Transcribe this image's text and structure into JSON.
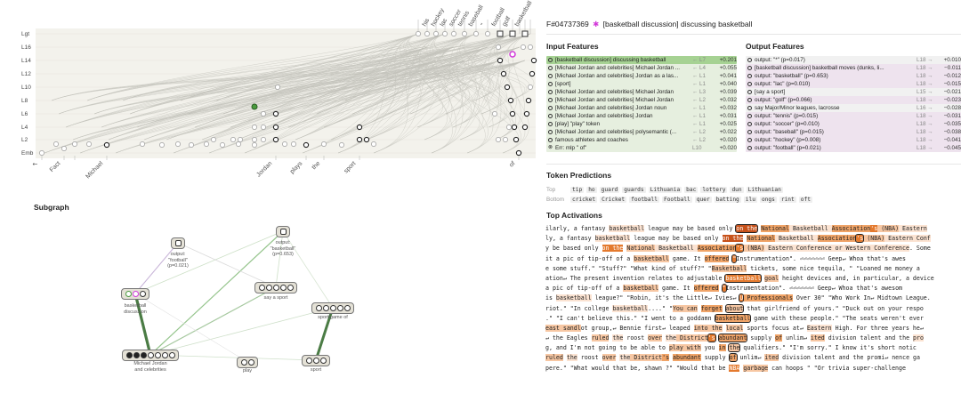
{
  "graph": {
    "layer_labels": [
      "Lgt",
      "L16",
      "L14",
      "L12",
      "L10",
      "L8",
      "L6",
      "L4",
      "L2",
      "Emb"
    ],
    "top_tokens": [
      "his",
      "hockey",
      "lac",
      "soccer",
      "tennis",
      "baseball",
      "\"",
      "football",
      "golf",
      "basketball"
    ],
    "bottom_tokens": [
      "↖",
      "Fact",
      "",
      "Michael",
      "Jordan",
      "plays",
      "the",
      "sport",
      "of"
    ]
  },
  "subgraph": {
    "title": "Subgraph",
    "nodes": [
      {
        "id": "football",
        "label": "output:\n\"football\"\n(p=0.021)"
      },
      {
        "id": "basketball-out",
        "label": "output:\n\"basketball\"\n(p=0.653)"
      },
      {
        "id": "basketball-disc",
        "label": "basketball\ndiscussion"
      },
      {
        "id": "say-sport",
        "label": "say a sport"
      },
      {
        "id": "sport-game",
        "label": "sport/game of"
      },
      {
        "id": "mj",
        "label": "Michael Jordan\nand celebrities"
      },
      {
        "id": "play",
        "label": "play"
      },
      {
        "id": "sport",
        "label": "sport"
      }
    ]
  },
  "detail": {
    "feature_id": "F#04737369",
    "star": "✱",
    "title": "[basketball discussion] discussing basketball",
    "input_heading": "Input Features",
    "output_heading": "Output Features",
    "input_features": [
      {
        "name": "[basketball discussion] discussing basketball",
        "layer": "← L7",
        "value": "+0.201",
        "selected": true
      },
      {
        "name": "[Michael Jordan and celebrities] Michael Jordan ...",
        "layer": "← L4",
        "value": "+0.055"
      },
      {
        "name": "[Michael Jordan and celebrities] Jordan as a las...",
        "layer": "← L1",
        "value": "+0.041"
      },
      {
        "name": "[sport]",
        "layer": "← L1",
        "value": "+0.040"
      },
      {
        "name": "[Michael Jordan and celebrities] Michael Jordan",
        "layer": "← L3",
        "value": "+0.039"
      },
      {
        "name": "[Michael Jordan and celebrities] Michael Jordan",
        "layer": "← L2",
        "value": "+0.032"
      },
      {
        "name": "[Michael Jordan and celebrities] Jordan noun",
        "layer": "← L1",
        "value": "+0.032"
      },
      {
        "name": "[Michael Jordan and celebrities] Jordan",
        "layer": "← L1",
        "value": "+0.031"
      },
      {
        "name": "[play] \"play\" token",
        "layer": "← L1",
        "value": "+0.025"
      },
      {
        "name": "[Michael Jordan and celebrities] polysemantic (...",
        "layer": "← L2",
        "value": "+0.022"
      },
      {
        "name": "famous athletes and coaches",
        "layer": "← L2",
        "value": "+0.020"
      },
      {
        "name": "Err: mlp \" of\"",
        "layer": "L10",
        "value": "+0.020"
      }
    ],
    "output_features": [
      {
        "name": "output: \"*\" (p=0.017)",
        "layer": "L18 →",
        "value": "+0.010"
      },
      {
        "name": "[basketball discussion] basketball moves (dunks, li...",
        "layer": "L18 →",
        "value": "−0.011"
      },
      {
        "name": "output: \"basketball\" (p=0.653)",
        "layer": "L18 →",
        "value": "−0.012"
      },
      {
        "name": "output: \"lac\" (p=0.010)",
        "layer": "L18 →",
        "value": "−0.015"
      },
      {
        "name": "[say a sport]",
        "layer": "L15 →",
        "value": "−0.021"
      },
      {
        "name": "output: \"golf\" (p=0.066)",
        "layer": "L18 →",
        "value": "−0.023"
      },
      {
        "name": "say Major/Minor leagues, lacrosse",
        "layer": "L16 →",
        "value": "−0.028"
      },
      {
        "name": "output: \"tennis\" (p=0.015)",
        "layer": "L18 →",
        "value": "−0.031"
      },
      {
        "name": "output: \"soccer\" (p=0.010)",
        "layer": "L18 →",
        "value": "−0.035"
      },
      {
        "name": "output: \"baseball\" (p=0.015)",
        "layer": "L18 →",
        "value": "−0.038"
      },
      {
        "name": "output: \"hockey\" (p=0.008)",
        "layer": "L18 →",
        "value": "−0.041"
      },
      {
        "name": "output: \"football\" (p=0.021)",
        "layer": "L18 →",
        "value": "−0.045"
      }
    ],
    "token_predictions_heading": "Token Predictions",
    "token_predictions": {
      "top_label": "Top",
      "top": [
        "tip",
        "ho",
        "guard",
        "guards",
        "Lithuania",
        "bac",
        "lottery",
        "dun",
        "Lithuanian"
      ],
      "bottom_label": "Bottom",
      "bottom": [
        "cricket",
        "Cricket",
        "football",
        "Football",
        "quer",
        "batting",
        "ilu",
        "ongs",
        "rint",
        "oft"
      ]
    },
    "top_activations_heading": "Top Activations",
    "activations": [
      [
        [
          "ilarly, a fantasy ",
          0
        ],
        [
          "basketball",
          1
        ],
        [
          " league may be based only ",
          0
        ],
        [
          "on the",
          5,
          1
        ],
        [
          " ",
          0
        ],
        [
          "National",
          3
        ],
        [
          " Basketball ",
          1
        ],
        [
          "Association",
          3
        ],
        [
          "'s",
          4
        ],
        [
          " (NBA)",
          2
        ],
        [
          " Eastern",
          1
        ]
      ],
      [
        [
          "ly, a fantasy ",
          0
        ],
        [
          "basketball",
          1
        ],
        [
          " league may be based only ",
          0
        ],
        [
          "on the",
          5
        ],
        [
          " ",
          0
        ],
        [
          "National",
          3
        ],
        [
          " Basketball ",
          1
        ],
        [
          "Association",
          3
        ],
        [
          "'s",
          4,
          1
        ],
        [
          " (NBA)",
          2
        ],
        [
          " Eastern Conf",
          1
        ]
      ],
      [
        [
          "y be based only ",
          0
        ],
        [
          "on the",
          4
        ],
        [
          " ",
          0
        ],
        [
          "National",
          2
        ],
        [
          " Basketball ",
          1
        ],
        [
          "Association",
          3
        ],
        [
          "'s",
          4,
          1
        ],
        [
          " (NBA)",
          2
        ],
        [
          " Eastern Conference or Western Conference",
          1
        ],
        [
          ". Some",
          0
        ]
      ],
      [
        [
          "it a pic of tip-off of a ",
          0
        ],
        [
          "basketball",
          2
        ],
        [
          " game. It ",
          0
        ],
        [
          "offered",
          3
        ],
        [
          " ",
          0
        ],
        [
          "\"",
          4,
          1
        ],
        [
          "Instrumentation\". ⏎⏎⏎⏎⏎⏎⏎ Geep↵ Whoa that's awes",
          0
        ]
      ],
      [
        [
          "e some stuff.\" \"Stuff?\" \"What kind of stuff?\" \"",
          0
        ],
        [
          "Basketball",
          2
        ],
        [
          " tickets, some nice tequila, \" \"Loaned me money a",
          0
        ]
      ],
      [
        [
          "ation↵ The present invention relates to adjustable ",
          0
        ],
        [
          "basketball",
          4,
          1
        ],
        [
          " ",
          0
        ],
        [
          "goal",
          2
        ],
        [
          " height devices and, in particular, a device",
          0
        ]
      ],
      [
        [
          "a pic of tip-off of a ",
          0
        ],
        [
          "basketball",
          2
        ],
        [
          " game. It ",
          0
        ],
        [
          "offered",
          3
        ],
        [
          " ",
          0
        ],
        [
          "\"",
          4,
          1
        ],
        [
          "Instrumentation\". ⏎⏎⏎⏎⏎⏎⏎ Geep↵ Whoa that's awesom",
          0
        ]
      ],
      [
        [
          "is ",
          0
        ],
        [
          "basketball",
          1
        ],
        [
          " league?\" \"Robin, it's the Little↵ Ivies↵ ",
          0
        ],
        [
          "U",
          4,
          1
        ],
        [
          " Professionals",
          3
        ],
        [
          " Over 30\" \"Who Work In↵ Midtown League.",
          0
        ]
      ],
      [
        [
          "riot.\" \"In college ",
          0
        ],
        [
          "basketball",
          1
        ],
        [
          "....\" \"",
          0
        ],
        [
          "You can",
          2
        ],
        [
          " ",
          0
        ],
        [
          "forget",
          3
        ],
        [
          " ",
          0
        ],
        [
          "about",
          2,
          1
        ],
        [
          " that girlfriend of yours.\" \"Duck out on your respo",
          0
        ]
      ],
      [
        [
          ".\" \"I can't believe this.\" \"I went to a goddamn ",
          0
        ],
        [
          "basketball",
          3,
          1
        ],
        [
          " game with these people.\" \"The seats weren't ever",
          0
        ]
      ],
      [
        [
          "east sandl",
          2
        ],
        [
          "ot group,↵ Bennie first↵ leaped ",
          0
        ],
        [
          "into the",
          2
        ],
        [
          " ",
          0
        ],
        [
          "local",
          2
        ],
        [
          " sports focus at↵ ",
          0
        ],
        [
          "Eastern",
          1
        ],
        [
          " High. For three years he↵",
          0
        ]
      ],
      [
        [
          "↵ the Eagles ",
          0
        ],
        [
          "ruled",
          2
        ],
        [
          " ",
          0
        ],
        [
          "the",
          1
        ],
        [
          " roost ",
          0
        ],
        [
          "over",
          2
        ],
        [
          " ",
          0
        ],
        [
          "the",
          1
        ],
        [
          " District",
          2
        ],
        [
          "'s",
          4,
          1
        ],
        [
          " ",
          0
        ],
        [
          "abundant",
          3,
          1
        ],
        [
          " supply ",
          0
        ],
        [
          "of",
          3
        ],
        [
          " unlim↵ ",
          0
        ],
        [
          "ited",
          2
        ],
        [
          " division talent and the ",
          0
        ],
        [
          "pro",
          1
        ]
      ],
      [
        [
          "g, and I'm not going to be able to ",
          0
        ],
        [
          "play with",
          2
        ],
        [
          " you ",
          0
        ],
        [
          "in",
          3
        ],
        [
          " ",
          0
        ],
        [
          "the",
          2,
          1
        ],
        [
          " qualifiers.\" \"I'm sorry.\" I know it's short notic",
          0
        ]
      ],
      [
        [
          "ruled",
          2
        ],
        [
          " ",
          0
        ],
        [
          "the",
          1
        ],
        [
          " roost ",
          0
        ],
        [
          "over",
          2
        ],
        [
          " ",
          0
        ],
        [
          "the",
          1
        ],
        [
          " District",
          2
        ],
        [
          "'s",
          3
        ],
        [
          " ",
          0
        ],
        [
          "abundant",
          3
        ],
        [
          " supply ",
          0
        ],
        [
          "of",
          3,
          1
        ],
        [
          " unlim↵ ",
          0
        ],
        [
          "ited",
          2
        ],
        [
          " division talent and the promi↵ nence ga",
          0
        ]
      ],
      [
        [
          "pere.\" \"What would that be, shawn ?\" \"Would that be ",
          0
        ],
        [
          "NBA",
          4
        ],
        [
          " ",
          0
        ],
        [
          "garbage",
          2
        ],
        [
          " can hoops \" \"Or trivia super-challenge",
          0
        ]
      ]
    ]
  }
}
